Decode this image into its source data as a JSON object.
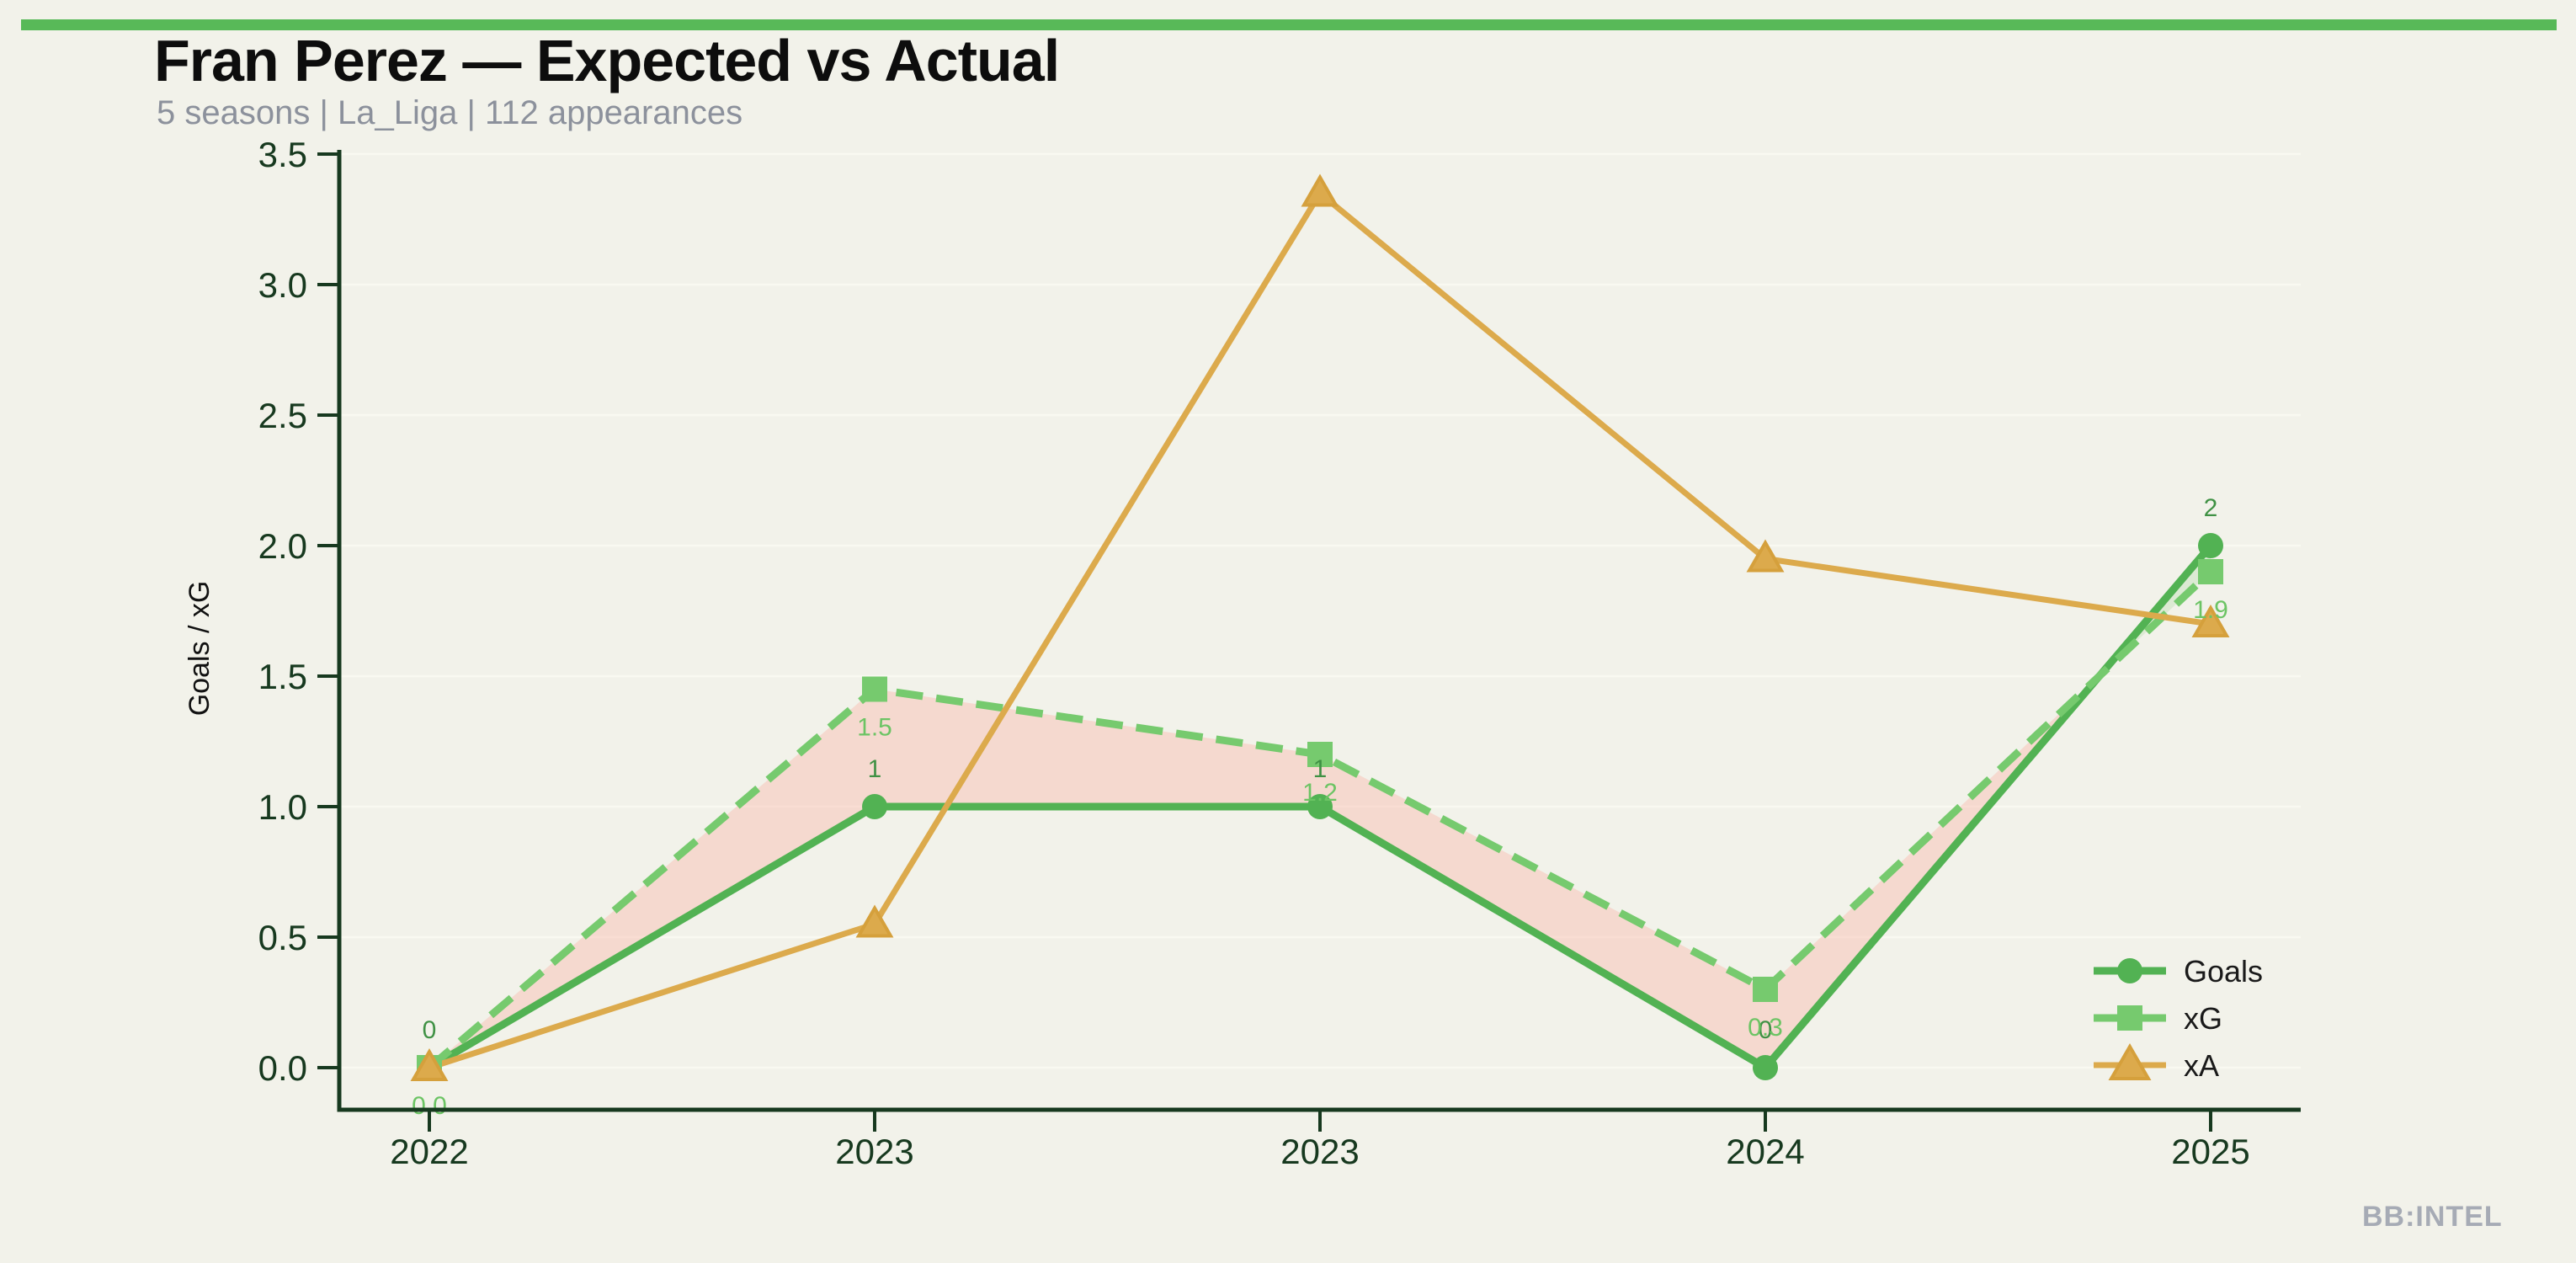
{
  "page": {
    "title": "Fran Perez — Expected vs Actual",
    "subtitle": "5 seasons | La_Liga | 112 appearances",
    "watermark": "BB:INTEL"
  },
  "colors": {
    "background": "#f2f2ea",
    "top_bar": "#58b958",
    "axis": "#17391f",
    "gridline": "#f9f9f1",
    "title": "#0d0d0d",
    "subtitle": "#8c919c",
    "watermark": "#a6abb5",
    "legend_text": "#1a1a1a",
    "fill_xg_above_goals": "rgba(248,186,176,0.45)",
    "fill_goals_above_xg": "rgba(120,200,110,0.18)"
  },
  "chart_data": {
    "type": "line",
    "title": "Fran Perez — Expected vs Actual",
    "subtitle": "5 seasons | La_Liga | 112 appearances",
    "categories": [
      "2022",
      "2023",
      "2023",
      "2024",
      "2025"
    ],
    "xlabel": "",
    "ylabel": "Goals / xG",
    "yticks": [
      "0.0",
      "0.5",
      "1.0",
      "1.5",
      "2.0",
      "2.5",
      "3.0",
      "3.5"
    ],
    "ylim": [
      -0.16,
      3.5
    ],
    "grid": "horizontal-faint",
    "legend_position": "lower right",
    "fill_between_note": "pink fill where xG > Goals, pale green where Goals > xG",
    "series": [
      {
        "name": "Goals",
        "color": "#52b253",
        "label_color": "#3f9144",
        "label_side": "above",
        "marker": "circle",
        "line": "solid",
        "width": 9,
        "values": [
          0,
          1,
          1,
          0,
          2
        ],
        "point_labels": [
          "0",
          "1",
          "1",
          "0",
          "2"
        ]
      },
      {
        "name": "xG",
        "color": "#76ca6e",
        "label_color": "#6cc464",
        "label_side": "below",
        "marker": "square",
        "line": "dashed",
        "width": 9,
        "values": [
          0.0,
          1.45,
          1.2,
          0.3,
          1.9
        ],
        "point_labels": [
          "0.0",
          "1.5",
          "1.2",
          "0.3",
          "1.9"
        ]
      },
      {
        "name": "xA",
        "color": "#dcaa4c",
        "edge": "#d5a03c",
        "marker": "triangle",
        "line": "solid",
        "width": 7,
        "values": [
          0.0,
          0.55,
          3.35,
          1.95,
          1.7
        ],
        "point_labels": []
      }
    ]
  }
}
